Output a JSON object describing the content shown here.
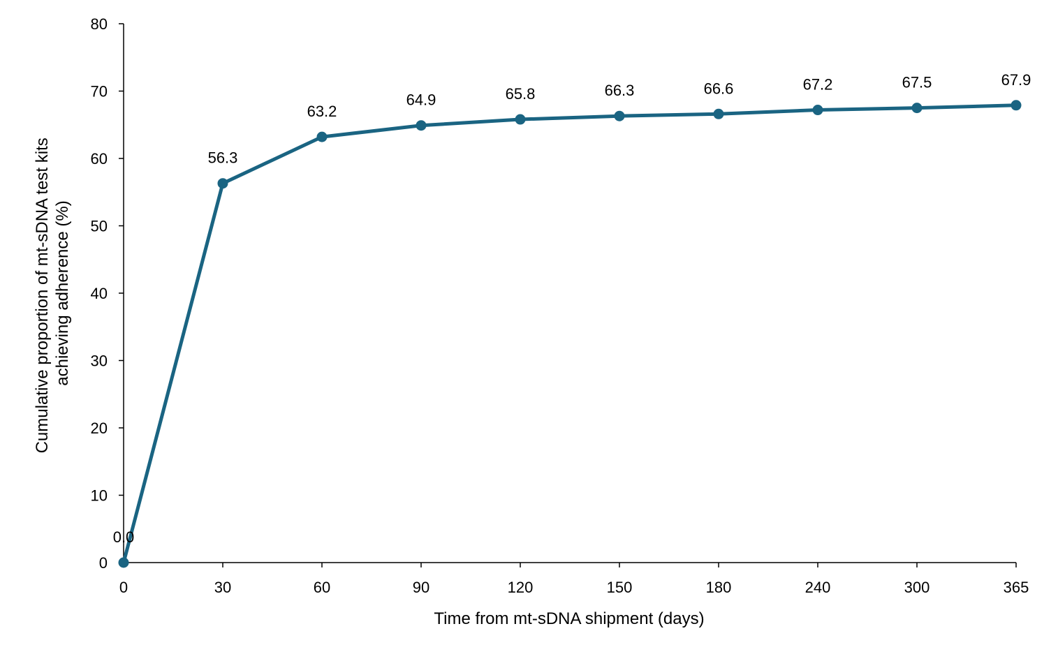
{
  "chart_data": {
    "type": "line",
    "categories": [
      "0",
      "30",
      "60",
      "90",
      "120",
      "150",
      "180",
      "240",
      "300",
      "365"
    ],
    "series": [
      {
        "values": [
          0.0,
          56.3,
          63.2,
          64.9,
          65.8,
          66.3,
          66.6,
          67.2,
          67.5,
          67.9
        ],
        "data_labels": [
          "0.0",
          "56.3",
          "63.2",
          "64.9",
          "65.8",
          "66.3",
          "66.6",
          "67.2",
          "67.5",
          "67.9"
        ],
        "color": "#1a6482"
      }
    ],
    "xlabel": "Time from mt-sDNA shipment (days)",
    "ylabel_lines": [
      "Cumulative  proportion of mt-sDNA test kits",
      "achieving adherence  (%)"
    ],
    "ylim": [
      0,
      80
    ],
    "yticks": [
      "0",
      "10",
      "20",
      "30",
      "40",
      "50",
      "60",
      "70",
      "80"
    ],
    "grid": false,
    "legend": "none"
  }
}
